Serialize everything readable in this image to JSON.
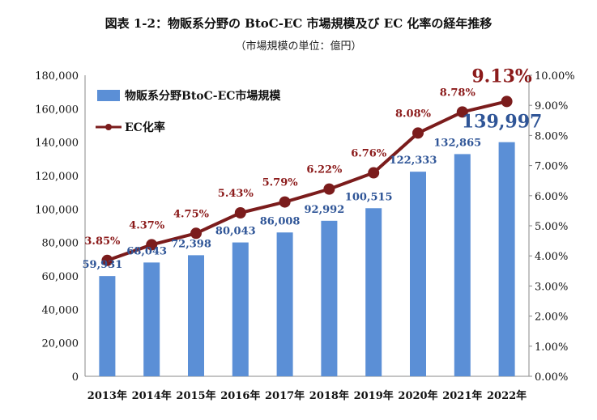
{
  "chart_data": {
    "type": "bar",
    "title": "図表 1-2：物販系分野の BtoC-EC 市場規模及び EC 化率の経年推移",
    "subtitle": "（市場規模の単位：億円）",
    "categories": [
      "2013年",
      "2014年",
      "2015年",
      "2016年",
      "2017年",
      "2018年",
      "2019年",
      "2020年",
      "2021年",
      "2022年"
    ],
    "series": [
      {
        "name": "物販系分野BtoC-EC市場規模",
        "type": "bar",
        "axis": "left",
        "color": "#5b8fd6",
        "values": [
          59931,
          68043,
          72398,
          80043,
          86008,
          92992,
          100515,
          122333,
          132865,
          139997
        ],
        "labels": [
          "59,931",
          "68,043",
          "72,398",
          "80,043",
          "86,008",
          "92,992",
          "100,515",
          "122,333",
          "132,865",
          "139,997"
        ]
      },
      {
        "name": "EC化率",
        "type": "line",
        "axis": "right",
        "color": "#7b1c1c",
        "values": [
          3.85,
          4.37,
          4.75,
          5.43,
          5.79,
          6.22,
          6.76,
          8.08,
          8.78,
          9.13
        ],
        "labels": [
          "3.85%",
          "4.37%",
          "4.75%",
          "5.43%",
          "5.79%",
          "6.22%",
          "6.76%",
          "8.08%",
          "8.78%",
          "9.13%"
        ]
      }
    ],
    "y_left": {
      "min": 0,
      "max": 180000,
      "ticks": [
        0,
        20000,
        40000,
        60000,
        80000,
        100000,
        120000,
        140000,
        160000,
        180000
      ],
      "tick_labels": [
        "0",
        "20,000",
        "40,000",
        "60,000",
        "80,000",
        "100,000",
        "120,000",
        "140,000",
        "160,000",
        "180,000"
      ]
    },
    "y_right": {
      "min": 0,
      "max": 10,
      "ticks": [
        0,
        1,
        2,
        3,
        4,
        5,
        6,
        7,
        8,
        9,
        10
      ],
      "tick_labels": [
        "0.00%",
        "1.00%",
        "2.00%",
        "3.00%",
        "4.00%",
        "5.00%",
        "6.00%",
        "7.00%",
        "8.00%",
        "9.00%",
        "10.00%"
      ]
    },
    "grid": false,
    "legend_position": "top-left"
  }
}
